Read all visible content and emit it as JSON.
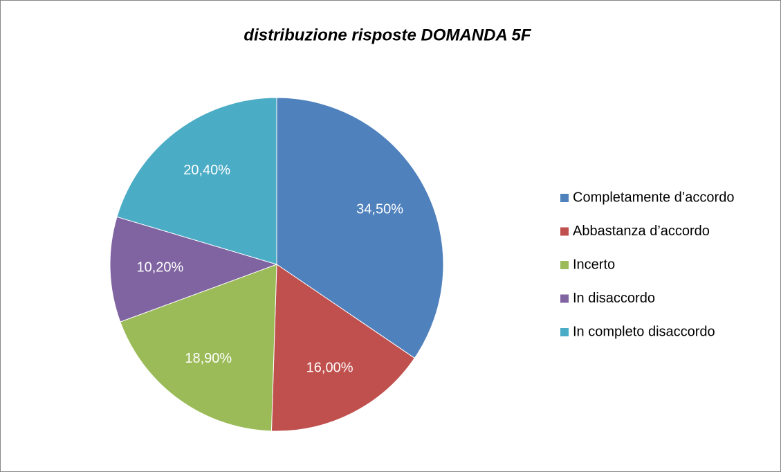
{
  "chart_data": {
    "type": "pie",
    "title": "distribuzione risposte DOMANDA 5F",
    "categories": [
      "Completamente d’accordo",
      "Abbastanza d’accordo",
      "Incerto",
      "In disaccordo",
      "In completo disaccordo"
    ],
    "values": [
      34.5,
      16.0,
      18.9,
      10.2,
      20.4
    ],
    "value_labels": [
      "34,50%",
      "16,00%",
      "18,90%",
      "10,20%",
      "20,40%"
    ],
    "colors": [
      "#4f81bd",
      "#c0504d",
      "#9bbb59",
      "#8064a2",
      "#4bacc6"
    ],
    "legend": "right"
  }
}
